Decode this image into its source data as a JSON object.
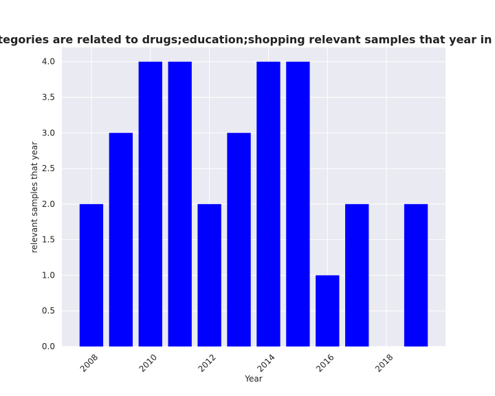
{
  "chart_data": {
    "type": "bar",
    "title": "How many categories are related to drugs;education;shopping relevant samples that year in privacy policies",
    "xlabel": "Year",
    "ylabel": "relevant samples that year",
    "x": [
      2008,
      2009,
      2010,
      2011,
      2012,
      2013,
      2014,
      2015,
      2016,
      2017,
      2019
    ],
    "values": [
      2,
      3,
      4,
      4,
      2,
      3,
      4,
      4,
      1,
      2,
      2
    ],
    "xlim": [
      2007,
      2020
    ],
    "ylim": [
      0,
      4.2
    ],
    "x_ticks": [
      "2008",
      "2010",
      "2012",
      "2014",
      "2016",
      "2018"
    ],
    "y_ticks": [
      "0.0",
      "0.5",
      "1.0",
      "1.5",
      "2.0",
      "2.5",
      "3.0",
      "3.5",
      "4.0"
    ],
    "bar_color": "#0000ff",
    "plot_background": "#eaeaf2",
    "grid": true
  }
}
